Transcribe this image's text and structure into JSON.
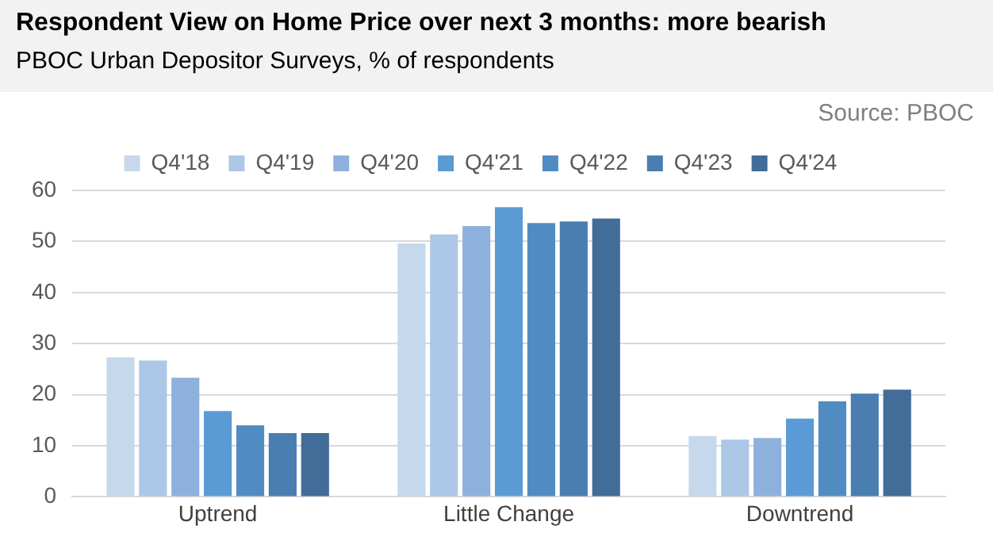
{
  "chart_data": {
    "type": "bar",
    "title": "Respondent View on Home Price over next 3 months: more bearish",
    "subtitle": "PBOC Urban Depositor Surveys, % of respondents",
    "annotations": [
      "Source: PBOC"
    ],
    "categories": [
      "Uptrend",
      "Little Change",
      "Downtrend"
    ],
    "series": [
      {
        "name": "Q4'18",
        "color": "#c6d8ec",
        "values": [
          27.3,
          49.6,
          11.9
        ]
      },
      {
        "name": "Q4'19",
        "color": "#adc7e6",
        "values": [
          26.7,
          51.4,
          11.2
        ]
      },
      {
        "name": "Q4'20",
        "color": "#8db1dc",
        "values": [
          23.3,
          53.0,
          11.5
        ]
      },
      {
        "name": "Q4'21",
        "color": "#5b9bd5",
        "values": [
          16.8,
          56.7,
          15.3
        ]
      },
      {
        "name": "Q4'22",
        "color": "#508cc2",
        "values": [
          14.0,
          53.6,
          18.7
        ]
      },
      {
        "name": "Q4'23",
        "color": "#4a7eb0",
        "values": [
          12.5,
          53.9,
          20.2
        ]
      },
      {
        "name": "Q4'24",
        "color": "#416d98",
        "values": [
          12.5,
          54.5,
          21.0
        ]
      }
    ],
    "ylim": [
      0,
      60
    ],
    "yticks": [
      0,
      10,
      20,
      30,
      40,
      50,
      60
    ],
    "grid": "y",
    "legend": "top"
  }
}
